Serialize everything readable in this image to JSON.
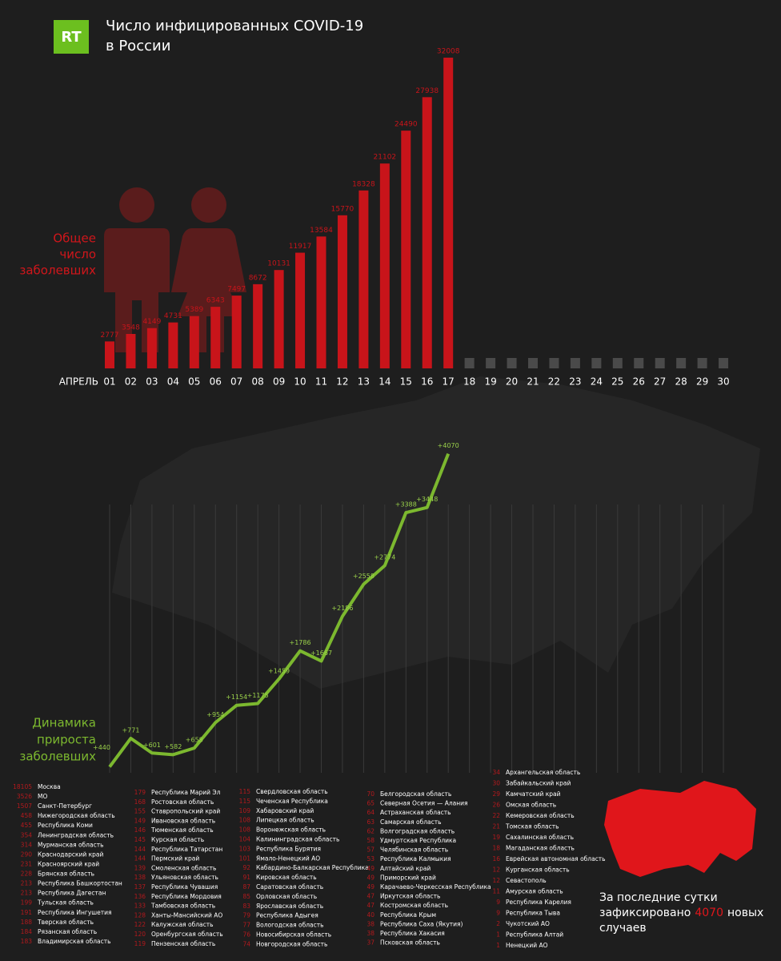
{
  "header": {
    "logo": "RT",
    "title_lines": [
      "Число инфицированных COVID-19",
      "в России"
    ]
  },
  "chart_data": [
    {
      "type": "bar",
      "label_lines": [
        "Общее",
        "число",
        "заболевших"
      ],
      "month": "АПРЕЛЬ",
      "categories": [
        "01",
        "02",
        "03",
        "04",
        "05",
        "06",
        "07",
        "08",
        "09",
        "10",
        "11",
        "12",
        "13",
        "14",
        "15",
        "16",
        "17",
        "18",
        "19",
        "20",
        "21",
        "22",
        "23",
        "24",
        "25",
        "26",
        "27",
        "28",
        "29",
        "30"
      ],
      "values": [
        2777,
        3548,
        4149,
        4731,
        5389,
        6343,
        7497,
        8672,
        10131,
        11917,
        13584,
        15770,
        18328,
        21102,
        24490,
        27938,
        32008,
        null,
        null,
        null,
        null,
        null,
        null,
        null,
        null,
        null,
        null,
        null,
        null,
        null
      ],
      "color": "#c8141a",
      "empty_color": "#4a4a4a"
    },
    {
      "type": "line",
      "label_lines": [
        "Динамика",
        "прироста",
        "заболевших"
      ],
      "values": [
        440,
        771,
        601,
        582,
        658,
        954,
        1154,
        1175,
        1459,
        1786,
        1667,
        2186,
        2558,
        2774,
        3388,
        3448,
        4070
      ],
      "value_labels": [
        "+440",
        "+771",
        "+601",
        "+582",
        "+658",
        "+954",
        "+1154",
        "+1175",
        "+1459",
        "+1786",
        "+1667",
        "+2186",
        "+2558",
        "+2774",
        "+3388",
        "+3448",
        "+4070"
      ],
      "color": "#7cb82f"
    }
  ],
  "regions": [
    [
      [
        "18105",
        "Москва"
      ],
      [
        "3526",
        "МО"
      ],
      [
        "1507",
        "Санкт-Петербург"
      ],
      [
        "458",
        "Нижегородская область"
      ],
      [
        "455",
        "Республика Коми"
      ],
      [
        "354",
        "Ленинградская область"
      ],
      [
        "314",
        "Мурманская область"
      ],
      [
        "290",
        "Краснодарский край"
      ],
      [
        "231",
        "Красноярский край"
      ],
      [
        "228",
        "Брянская область"
      ],
      [
        "213",
        "Республика Башкортостан"
      ],
      [
        "213",
        "Республика Дагестан"
      ],
      [
        "199",
        "Тульская область"
      ],
      [
        "191",
        "Республика Ингушетия"
      ],
      [
        "188",
        "Тверская область"
      ],
      [
        "184",
        "Рязанская область"
      ],
      [
        "183",
        "Владимирская область"
      ]
    ],
    [
      [
        "179",
        "Республика Марий Эл"
      ],
      [
        "168",
        "Ростовская область"
      ],
      [
        "155",
        "Ставропольский край"
      ],
      [
        "149",
        "Ивановская область"
      ],
      [
        "146",
        "Тюменская область"
      ],
      [
        "145",
        "Курская область"
      ],
      [
        "144",
        "Республика Татарстан"
      ],
      [
        "144",
        "Пермский край"
      ],
      [
        "139",
        "Смоленская область"
      ],
      [
        "138",
        "Ульяновская область"
      ],
      [
        "137",
        "Республика Чувашия"
      ],
      [
        "136",
        "Республика Мордовия"
      ],
      [
        "133",
        "Тамбовская область"
      ],
      [
        "128",
        "Ханты-Мансийский АО"
      ],
      [
        "122",
        "Калужская область"
      ],
      [
        "120",
        "Оренбургская область"
      ],
      [
        "119",
        "Пензенская область"
      ]
    ],
    [
      [
        "115",
        "Свердловская область"
      ],
      [
        "115",
        "Чеченская Республика"
      ],
      [
        "109",
        "Хабаровский край"
      ],
      [
        "108",
        "Липецкая область"
      ],
      [
        "108",
        "Воронежская область"
      ],
      [
        "104",
        "Калининградская область"
      ],
      [
        "103",
        "Республика Бурятия"
      ],
      [
        "101",
        "Ямало-Ненецкий АО"
      ],
      [
        "92",
        "Кабардино-Балкарская Республика"
      ],
      [
        "91",
        "Кировская область"
      ],
      [
        "87",
        "Саратовская область"
      ],
      [
        "85",
        "Орловская область"
      ],
      [
        "83",
        "Ярославская область"
      ],
      [
        "79",
        "Республика Адыгея"
      ],
      [
        "77",
        "Вологодская область"
      ],
      [
        "76",
        "Новосибирская область"
      ],
      [
        "74",
        "Новгородская область"
      ]
    ],
    [
      [
        "70",
        "Белгородская область"
      ],
      [
        "65",
        "Северная Осетия — Алания"
      ],
      [
        "64",
        "Астраханская область"
      ],
      [
        "63",
        "Самарская область"
      ],
      [
        "62",
        "Волгоградская область"
      ],
      [
        "58",
        "Удмуртская Республика"
      ],
      [
        "57",
        "Челябинская область"
      ],
      [
        "53",
        "Республика Калмыкия"
      ],
      [
        "49",
        "Алтайский край"
      ],
      [
        "49",
        "Приморский край"
      ],
      [
        "49",
        "Карачаево-Черкесская Республика"
      ],
      [
        "47",
        "Иркутская область"
      ],
      [
        "47",
        "Костромская область"
      ],
      [
        "40",
        "Республика Крым"
      ],
      [
        "38",
        "Республика Саха (Якутия)"
      ],
      [
        "38",
        "Республика Хакасия"
      ],
      [
        "37",
        "Псковская область"
      ]
    ],
    [
      [
        "34",
        "Архангельская область"
      ],
      [
        "30",
        "Забайкальский край"
      ],
      [
        "29",
        "Камчатский край"
      ],
      [
        "26",
        "Омская область"
      ],
      [
        "22",
        "Кемеровская область"
      ],
      [
        "21",
        "Томская область"
      ],
      [
        "19",
        "Сахалинская область"
      ],
      [
        "18",
        "Магаданская область"
      ],
      [
        "16",
        "Еврейская автономная область"
      ],
      [
        "12",
        "Курганская область"
      ],
      [
        "12",
        "Севастополь"
      ],
      [
        "11",
        "Амурская область"
      ],
      [
        "9",
        "Республика Карелия"
      ],
      [
        "9",
        "Республика Тыва"
      ],
      [
        "2",
        "Чукотский АО"
      ],
      [
        "1",
        "Республика Алтай"
      ],
      [
        "1",
        "Ненецкий АО"
      ]
    ]
  ],
  "footer": {
    "line1": "За последние сутки",
    "line2_start": "зафиксировано",
    "highlight": "4070",
    "line2_end": "новых",
    "line3": "случаев"
  }
}
